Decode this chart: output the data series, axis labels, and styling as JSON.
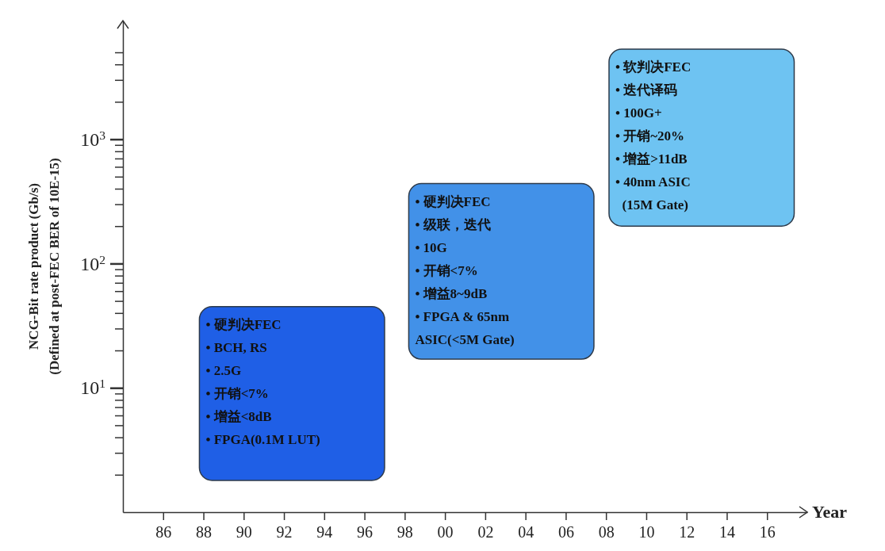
{
  "chart_data": {
    "type": "bar",
    "ylabel": "NCG-Bit rate product (Gb/s)\n(Defined at post-FEC BER of 10E-15)",
    "xlabel": "Year",
    "x": [
      1992.4,
      2002.8,
      2012.75
    ],
    "base": [
      1.8,
      17,
      200
    ],
    "values": [
      43.2,
      423,
      5100
    ],
    "colors": [
      "#1f5fe6",
      "#4291e8",
      "#6ec3f2"
    ],
    "log": "y",
    "grid": false,
    "xlim": [
      1984,
      2018
    ],
    "xticks": [
      {
        "value": 1986,
        "label": "86"
      },
      {
        "value": 1988,
        "label": "88"
      },
      {
        "value": 1990,
        "label": "90"
      },
      {
        "value": 1992,
        "label": "92"
      },
      {
        "value": 1994,
        "label": "94"
      },
      {
        "value": 1996,
        "label": "96"
      },
      {
        "value": 1998,
        "label": "98"
      },
      {
        "value": 2000,
        "label": "00"
      },
      {
        "value": 2002,
        "label": "02"
      },
      {
        "value": 2004,
        "label": "04"
      },
      {
        "value": 2006,
        "label": "06"
      },
      {
        "value": 2008,
        "label": "08"
      },
      {
        "value": 2010,
        "label": "10"
      },
      {
        "value": 2012,
        "label": "12"
      },
      {
        "value": 2014,
        "label": "14"
      },
      {
        "value": 2016,
        "label": "16"
      }
    ],
    "ylim": [
      1,
      9000
    ],
    "yticks": [
      {
        "value": 2,
        "label": null
      },
      {
        "value": 3,
        "label": null
      },
      {
        "value": 4,
        "label": null
      },
      {
        "value": 5,
        "label": null
      },
      {
        "value": 6,
        "label": null
      },
      {
        "value": 7,
        "label": null
      },
      {
        "value": 8,
        "label": null
      },
      {
        "value": 9,
        "label": null
      },
      {
        "value": 10,
        "label": "10$^{1}$"
      },
      {
        "value": 20,
        "label": null
      },
      {
        "value": 30,
        "label": null
      },
      {
        "value": 40,
        "label": null
      },
      {
        "value": 50,
        "label": null
      },
      {
        "value": 60,
        "label": null
      },
      {
        "value": 70,
        "label": null
      },
      {
        "value": 80,
        "label": null
      },
      {
        "value": 90,
        "label": null
      },
      {
        "value": 100,
        "label": "10$^{2}$"
      },
      {
        "value": 200,
        "label": null
      },
      {
        "value": 300,
        "label": null
      },
      {
        "value": 400,
        "label": null
      },
      {
        "value": 500,
        "label": null
      },
      {
        "value": 600,
        "label": null
      },
      {
        "value": 700,
        "label": null
      },
      {
        "value": 800,
        "label": null
      },
      {
        "value": 900,
        "label": null
      },
      {
        "value": 1000,
        "label": "10$^{3}$"
      },
      {
        "value": 2000,
        "label": null
      },
      {
        "value": 3000,
        "label": null
      },
      {
        "value": 4000,
        "label": null
      },
      {
        "value": 5000,
        "label": null
      }
    ],
    "annotations": [
      "• 硬判决FEC\n• BCH, RS\n• 2.5G\n• 开销<7%\n• 增益<8dB\n• FPGA(0.1M LUT)",
      "• 硬判决FEC\n• 级联，迭代\n• 10G\n• 开销<7%\n• 增益8~9dB\n• FPGA & 65nm\nASIC(<5M Gate)",
      "• 软判决FEC\n• 迭代译码\n• 100G+\n• 开销~20%\n• 增益>11dB\n• 40nm ASIC\n  (15M Gate)"
    ]
  }
}
